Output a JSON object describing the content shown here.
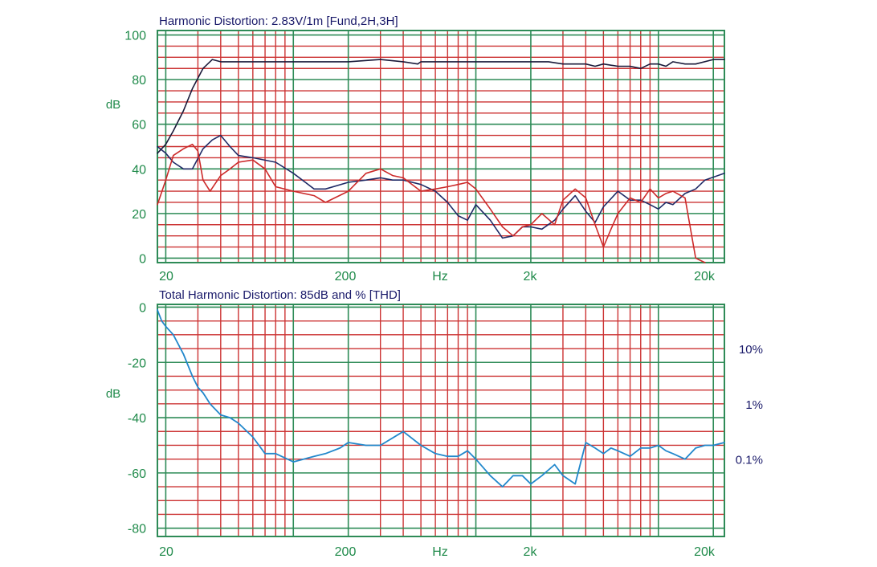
{
  "chart_data": [
    {
      "type": "line",
      "title": "Harmonic Distortion: 2.83V/1m [Fund,2H,3H]",
      "ylabel": "dB",
      "xlabel": "Hz",
      "x_scale": "log",
      "xlim": [
        18,
        23000
      ],
      "ylim": [
        -2,
        102
      ],
      "x_tick_labels": [
        "20",
        "200",
        "Hz",
        "2k",
        "20k"
      ],
      "y_ticks": [
        0,
        20,
        40,
        60,
        80,
        100
      ],
      "colors": {
        "fund": "#1a1a3a",
        "h2": "#1f2a66",
        "h3": "#cc2a2a",
        "grid_major": "#2e8b57",
        "grid_minor": "#cc3333",
        "frame": "#2e8b57"
      },
      "series": [
        {
          "key": "fund",
          "x": [
            18,
            20,
            22,
            25,
            28,
            32,
            36,
            40,
            45,
            50,
            60,
            80,
            100,
            150,
            200,
            300,
            400,
            480,
            500,
            600,
            800,
            1000,
            1500,
            2000,
            2500,
            3000,
            3500,
            4000,
            4500,
            5000,
            6000,
            7000,
            8000,
            9000,
            10000,
            11000,
            12000,
            14000,
            16000,
            20000,
            23000
          ],
          "y": [
            47,
            51,
            57,
            66,
            76,
            85,
            89,
            88,
            88,
            88,
            88,
            88,
            88,
            88,
            88,
            89,
            88,
            87,
            88,
            88,
            88,
            88,
            88,
            88,
            88,
            87,
            87,
            87,
            86,
            87,
            86,
            86,
            85,
            87,
            87,
            86,
            88,
            87,
            87,
            89,
            89
          ]
        },
        {
          "key": "h2",
          "x": [
            18,
            20,
            22,
            25,
            28,
            32,
            36,
            40,
            45,
            50,
            60,
            80,
            100,
            130,
            150,
            200,
            250,
            300,
            350,
            400,
            500,
            600,
            700,
            800,
            900,
            1000,
            1200,
            1400,
            1600,
            1800,
            2000,
            2300,
            2700,
            3000,
            3500,
            4000,
            4500,
            5000,
            6000,
            7000,
            8000,
            9000,
            10000,
            11000,
            12000,
            14000,
            16000,
            18000,
            23000
          ],
          "y": [
            50,
            47,
            43,
            40,
            40,
            49,
            53,
            55,
            50,
            46,
            45,
            43,
            38,
            31,
            31,
            34,
            35,
            36,
            35,
            35,
            33,
            30,
            25,
            19,
            17,
            24,
            17,
            9,
            10,
            14,
            14,
            13,
            17,
            22,
            28,
            21,
            16,
            23,
            30,
            26,
            26,
            24,
            22,
            25,
            24,
            29,
            31,
            35,
            38
          ]
        },
        {
          "key": "h3",
          "x": [
            18,
            20,
            22,
            25,
            28,
            30,
            32,
            35,
            40,
            45,
            50,
            60,
            70,
            80,
            100,
            130,
            150,
            200,
            250,
            300,
            350,
            400,
            500,
            600,
            700,
            800,
            900,
            1000,
            1200,
            1400,
            1600,
            1800,
            2000,
            2300,
            2700,
            3000,
            3500,
            4000,
            4500,
            5000,
            5500,
            6000,
            7000,
            8000,
            9000,
            10000,
            11000,
            12000,
            14000,
            16000,
            18000
          ],
          "y": [
            24,
            35,
            46,
            49,
            51,
            48,
            35,
            30,
            37,
            40,
            43,
            44,
            40,
            32,
            30,
            28,
            25,
            30,
            38,
            40,
            37,
            36,
            30,
            31,
            32,
            33,
            34,
            31,
            22,
            14,
            10,
            14,
            15,
            20,
            15,
            26,
            31,
            27,
            15,
            5,
            13,
            20,
            27,
            25,
            31,
            27,
            29,
            30,
            27,
            0,
            -2
          ]
        }
      ]
    },
    {
      "type": "line",
      "title": "Total Harmonic Distortion: 85dB and % [THD]",
      "ylabel": "dB",
      "xlabel": "Hz",
      "x_scale": "log",
      "xlim": [
        18,
        23000
      ],
      "ylim": [
        -83,
        1
      ],
      "x_tick_labels": [
        "20",
        "200",
        "Hz",
        "2k",
        "20k"
      ],
      "y_ticks": [
        0,
        -20,
        -40,
        -60,
        -80
      ],
      "percent_labels": [
        {
          "label": "10%",
          "db": -15
        },
        {
          "label": "1%",
          "db": -35
        },
        {
          "label": "0.1%",
          "db": -55
        }
      ],
      "colors": {
        "thd": "#2288cc",
        "grid_major": "#2e8b57",
        "grid_minor": "#cc3333",
        "frame": "#2e8b57"
      },
      "series": [
        {
          "key": "thd",
          "x": [
            18,
            19,
            20,
            22,
            25,
            28,
            30,
            32,
            35,
            40,
            45,
            50,
            60,
            70,
            80,
            100,
            130,
            150,
            180,
            200,
            250,
            300,
            400,
            500,
            600,
            700,
            800,
            900,
            1000,
            1200,
            1400,
            1600,
            1800,
            2000,
            2300,
            2700,
            3000,
            3500,
            4000,
            4500,
            5000,
            5500,
            6000,
            7000,
            8000,
            9000,
            10000,
            11000,
            12000,
            14000,
            16000,
            18000,
            20000,
            23000
          ],
          "y": [
            -1,
            -5,
            -7,
            -10,
            -17,
            -25,
            -29,
            -31,
            -35,
            -39,
            -40,
            -42,
            -47,
            -53,
            -53,
            -56,
            -54,
            -53,
            -51,
            -49,
            -50,
            -50,
            -45,
            -50,
            -53,
            -54,
            -54,
            -52,
            -55,
            -61,
            -65,
            -61,
            -61,
            -64,
            -61,
            -57,
            -61,
            -64,
            -49,
            -51,
            -53,
            -51,
            -52,
            -54,
            -51,
            -51,
            -50,
            -52,
            -53,
            -55,
            -51,
            -50,
            -50,
            -49
          ]
        }
      ]
    }
  ]
}
